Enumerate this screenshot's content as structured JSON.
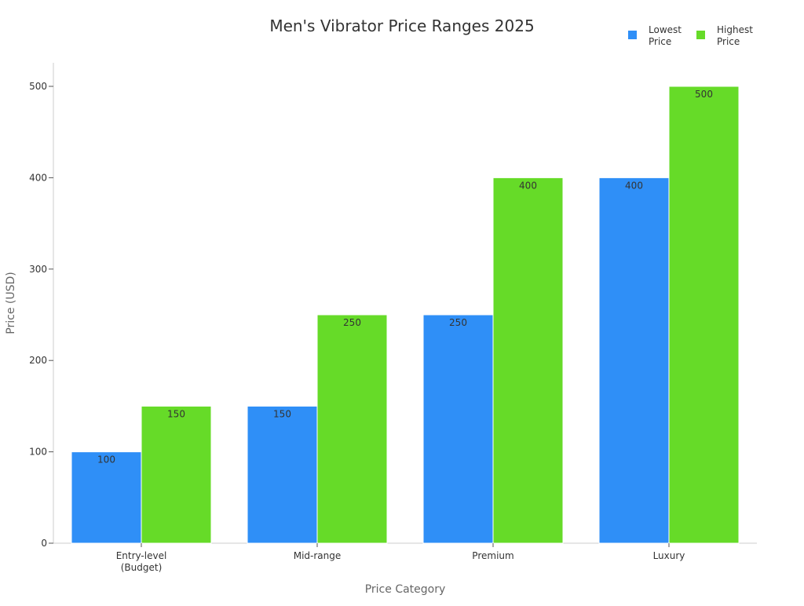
{
  "chart_data": {
    "type": "bar",
    "title": "Men's Vibrator Price Ranges 2025",
    "xlabel": "Price Category",
    "ylabel": "Price (USD)",
    "categories": [
      [
        "Entry-level",
        "(Budget)"
      ],
      [
        "Mid-range"
      ],
      [
        "Premium"
      ],
      [
        "Luxury"
      ]
    ],
    "series": [
      {
        "name": [
          "Lowest",
          "Price"
        ],
        "values": [
          100,
          150,
          250,
          400
        ],
        "color": "#2f8ff7"
      },
      {
        "name": [
          "Highest",
          "Price"
        ],
        "values": [
          150,
          250,
          400,
          500
        ],
        "color": "#66db28"
      }
    ],
    "ylim": [
      0,
      520
    ],
    "yticks": [
      0,
      100,
      200,
      300,
      400,
      500
    ],
    "grid": false,
    "legend_position": "top-right",
    "data_labels": true
  }
}
